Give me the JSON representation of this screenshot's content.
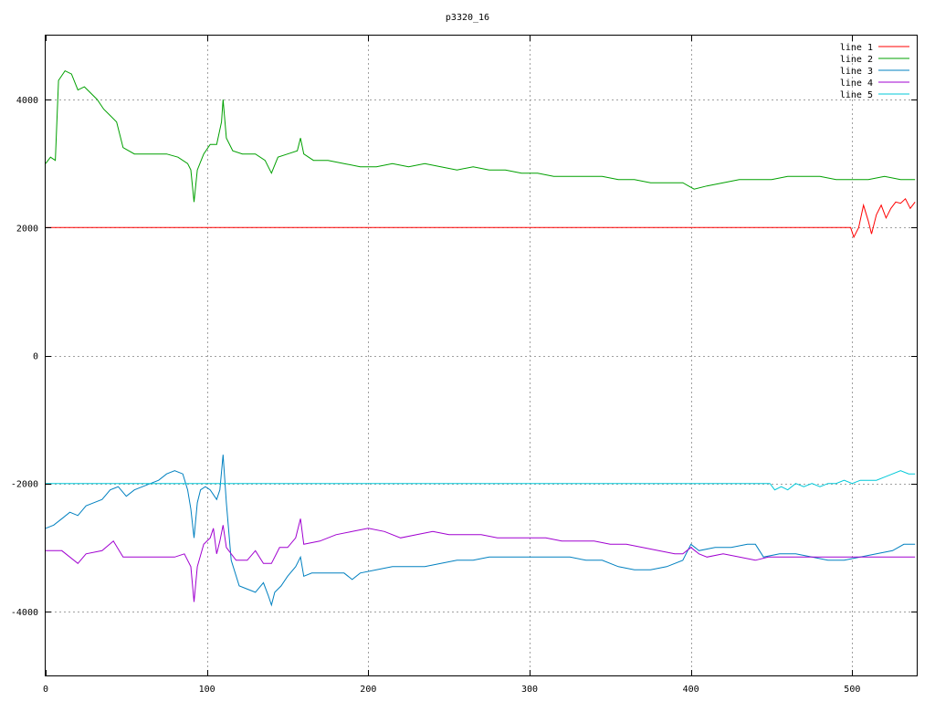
{
  "chart_data": {
    "type": "line",
    "title": "p3320_16",
    "xlim": [
      0,
      540
    ],
    "ylim": [
      -5000,
      5000
    ],
    "xticks": [
      0,
      100,
      200,
      300,
      400,
      500
    ],
    "yticks": [
      -4000,
      -2000,
      0,
      2000,
      4000
    ],
    "grid": true,
    "legend_position": "top-right",
    "series": [
      {
        "name": "line 1",
        "color": "#ff0000",
        "points": [
          [
            0,
            2000
          ],
          [
            100,
            2000
          ],
          [
            200,
            2000
          ],
          [
            300,
            2000
          ],
          [
            400,
            2000
          ],
          [
            499,
            2000
          ],
          [
            501,
            1850
          ],
          [
            504,
            2000
          ],
          [
            507,
            2350
          ],
          [
            510,
            2100
          ],
          [
            512,
            1900
          ],
          [
            515,
            2200
          ],
          [
            518,
            2350
          ],
          [
            521,
            2150
          ],
          [
            524,
            2300
          ],
          [
            527,
            2400
          ],
          [
            530,
            2380
          ],
          [
            533,
            2450
          ],
          [
            536,
            2300
          ],
          [
            539,
            2400
          ]
        ]
      },
      {
        "name": "line 2",
        "color": "#00a000",
        "points": [
          [
            0,
            3000
          ],
          [
            3,
            3100
          ],
          [
            6,
            3050
          ],
          [
            8,
            4300
          ],
          [
            12,
            4450
          ],
          [
            16,
            4400
          ],
          [
            20,
            4150
          ],
          [
            24,
            4200
          ],
          [
            28,
            4100
          ],
          [
            32,
            4000
          ],
          [
            36,
            3850
          ],
          [
            40,
            3750
          ],
          [
            44,
            3650
          ],
          [
            48,
            3250
          ],
          [
            55,
            3150
          ],
          [
            65,
            3150
          ],
          [
            75,
            3150
          ],
          [
            82,
            3100
          ],
          [
            88,
            3000
          ],
          [
            90,
            2900
          ],
          [
            92,
            2400
          ],
          [
            94,
            2900
          ],
          [
            98,
            3150
          ],
          [
            102,
            3300
          ],
          [
            106,
            3300
          ],
          [
            109,
            3650
          ],
          [
            110,
            4000
          ],
          [
            112,
            3400
          ],
          [
            116,
            3200
          ],
          [
            122,
            3150
          ],
          [
            130,
            3150
          ],
          [
            136,
            3050
          ],
          [
            140,
            2850
          ],
          [
            144,
            3100
          ],
          [
            150,
            3150
          ],
          [
            156,
            3200
          ],
          [
            158,
            3400
          ],
          [
            160,
            3150
          ],
          [
            166,
            3050
          ],
          [
            175,
            3050
          ],
          [
            185,
            3000
          ],
          [
            195,
            2950
          ],
          [
            205,
            2950
          ],
          [
            215,
            3000
          ],
          [
            225,
            2950
          ],
          [
            235,
            3000
          ],
          [
            245,
            2950
          ],
          [
            255,
            2900
          ],
          [
            265,
            2950
          ],
          [
            275,
            2900
          ],
          [
            285,
            2900
          ],
          [
            295,
            2850
          ],
          [
            305,
            2850
          ],
          [
            315,
            2800
          ],
          [
            325,
            2800
          ],
          [
            335,
            2800
          ],
          [
            345,
            2800
          ],
          [
            355,
            2750
          ],
          [
            365,
            2750
          ],
          [
            375,
            2700
          ],
          [
            385,
            2700
          ],
          [
            395,
            2700
          ],
          [
            402,
            2600
          ],
          [
            410,
            2650
          ],
          [
            420,
            2700
          ],
          [
            430,
            2750
          ],
          [
            440,
            2750
          ],
          [
            450,
            2750
          ],
          [
            460,
            2800
          ],
          [
            470,
            2800
          ],
          [
            480,
            2800
          ],
          [
            490,
            2750
          ],
          [
            500,
            2750
          ],
          [
            510,
            2750
          ],
          [
            520,
            2800
          ],
          [
            530,
            2750
          ],
          [
            539,
            2750
          ]
        ]
      },
      {
        "name": "line 3",
        "color": "#0080c0",
        "points": [
          [
            0,
            -2700
          ],
          [
            5,
            -2650
          ],
          [
            10,
            -2550
          ],
          [
            15,
            -2450
          ],
          [
            20,
            -2500
          ],
          [
            25,
            -2350
          ],
          [
            30,
            -2300
          ],
          [
            35,
            -2250
          ],
          [
            40,
            -2100
          ],
          [
            45,
            -2050
          ],
          [
            50,
            -2200
          ],
          [
            55,
            -2100
          ],
          [
            60,
            -2050
          ],
          [
            65,
            -2000
          ],
          [
            70,
            -1950
          ],
          [
            75,
            -1850
          ],
          [
            80,
            -1800
          ],
          [
            85,
            -1850
          ],
          [
            88,
            -2100
          ],
          [
            90,
            -2400
          ],
          [
            92,
            -2850
          ],
          [
            94,
            -2300
          ],
          [
            96,
            -2100
          ],
          [
            99,
            -2050
          ],
          [
            102,
            -2100
          ],
          [
            106,
            -2250
          ],
          [
            108,
            -2100
          ],
          [
            110,
            -1550
          ],
          [
            112,
            -2300
          ],
          [
            115,
            -3200
          ],
          [
            120,
            -3600
          ],
          [
            125,
            -3650
          ],
          [
            130,
            -3700
          ],
          [
            135,
            -3550
          ],
          [
            138,
            -3750
          ],
          [
            140,
            -3900
          ],
          [
            142,
            -3700
          ],
          [
            146,
            -3600
          ],
          [
            150,
            -3450
          ],
          [
            155,
            -3300
          ],
          [
            158,
            -3150
          ],
          [
            160,
            -3450
          ],
          [
            165,
            -3400
          ],
          [
            175,
            -3400
          ],
          [
            185,
            -3400
          ],
          [
            190,
            -3500
          ],
          [
            195,
            -3400
          ],
          [
            205,
            -3350
          ],
          [
            215,
            -3300
          ],
          [
            225,
            -3300
          ],
          [
            235,
            -3300
          ],
          [
            245,
            -3250
          ],
          [
            255,
            -3200
          ],
          [
            265,
            -3200
          ],
          [
            275,
            -3150
          ],
          [
            285,
            -3150
          ],
          [
            295,
            -3150
          ],
          [
            305,
            -3150
          ],
          [
            315,
            -3150
          ],
          [
            325,
            -3150
          ],
          [
            335,
            -3200
          ],
          [
            345,
            -3200
          ],
          [
            355,
            -3300
          ],
          [
            365,
            -3350
          ],
          [
            375,
            -3350
          ],
          [
            385,
            -3300
          ],
          [
            395,
            -3200
          ],
          [
            400,
            -2950
          ],
          [
            405,
            -3050
          ],
          [
            415,
            -3000
          ],
          [
            425,
            -3000
          ],
          [
            435,
            -2950
          ],
          [
            440,
            -2950
          ],
          [
            445,
            -3150
          ],
          [
            455,
            -3100
          ],
          [
            465,
            -3100
          ],
          [
            475,
            -3150
          ],
          [
            485,
            -3200
          ],
          [
            495,
            -3200
          ],
          [
            505,
            -3150
          ],
          [
            515,
            -3100
          ],
          [
            525,
            -3050
          ],
          [
            532,
            -2950
          ],
          [
            539,
            -2950
          ]
        ]
      },
      {
        "name": "line 4",
        "color": "#a000d0",
        "points": [
          [
            0,
            -3050
          ],
          [
            10,
            -3050
          ],
          [
            20,
            -3250
          ],
          [
            25,
            -3100
          ],
          [
            35,
            -3050
          ],
          [
            42,
            -2900
          ],
          [
            48,
            -3150
          ],
          [
            60,
            -3150
          ],
          [
            70,
            -3150
          ],
          [
            80,
            -3150
          ],
          [
            86,
            -3100
          ],
          [
            90,
            -3300
          ],
          [
            92,
            -3850
          ],
          [
            94,
            -3300
          ],
          [
            98,
            -2950
          ],
          [
            102,
            -2850
          ],
          [
            104,
            -2700
          ],
          [
            106,
            -3100
          ],
          [
            108,
            -2900
          ],
          [
            110,
            -2650
          ],
          [
            112,
            -3000
          ],
          [
            118,
            -3200
          ],
          [
            125,
            -3200
          ],
          [
            130,
            -3050
          ],
          [
            135,
            -3250
          ],
          [
            140,
            -3250
          ],
          [
            145,
            -3000
          ],
          [
            150,
            -3000
          ],
          [
            155,
            -2850
          ],
          [
            158,
            -2550
          ],
          [
            160,
            -2950
          ],
          [
            170,
            -2900
          ],
          [
            180,
            -2800
          ],
          [
            190,
            -2750
          ],
          [
            200,
            -2700
          ],
          [
            210,
            -2750
          ],
          [
            220,
            -2850
          ],
          [
            230,
            -2800
          ],
          [
            240,
            -2750
          ],
          [
            250,
            -2800
          ],
          [
            260,
            -2800
          ],
          [
            270,
            -2800
          ],
          [
            280,
            -2850
          ],
          [
            290,
            -2850
          ],
          [
            300,
            -2850
          ],
          [
            310,
            -2850
          ],
          [
            320,
            -2900
          ],
          [
            330,
            -2900
          ],
          [
            340,
            -2900
          ],
          [
            350,
            -2950
          ],
          [
            360,
            -2950
          ],
          [
            370,
            -3000
          ],
          [
            380,
            -3050
          ],
          [
            390,
            -3100
          ],
          [
            395,
            -3100
          ],
          [
            400,
            -3000
          ],
          [
            405,
            -3100
          ],
          [
            410,
            -3150
          ],
          [
            420,
            -3100
          ],
          [
            430,
            -3150
          ],
          [
            440,
            -3200
          ],
          [
            448,
            -3150
          ],
          [
            460,
            -3150
          ],
          [
            480,
            -3150
          ],
          [
            500,
            -3150
          ],
          [
            520,
            -3150
          ],
          [
            539,
            -3150
          ]
        ]
      },
      {
        "name": "line 5",
        "color": "#00c8d8",
        "points": [
          [
            0,
            -2000
          ],
          [
            100,
            -2000
          ],
          [
            200,
            -2000
          ],
          [
            300,
            -2000
          ],
          [
            400,
            -2000
          ],
          [
            449,
            -2000
          ],
          [
            452,
            -2100
          ],
          [
            456,
            -2050
          ],
          [
            460,
            -2100
          ],
          [
            465,
            -2000
          ],
          [
            470,
            -2050
          ],
          [
            475,
            -2000
          ],
          [
            480,
            -2050
          ],
          [
            485,
            -2000
          ],
          [
            490,
            -2000
          ],
          [
            495,
            -1950
          ],
          [
            500,
            -2000
          ],
          [
            505,
            -1950
          ],
          [
            510,
            -1950
          ],
          [
            515,
            -1950
          ],
          [
            520,
            -1900
          ],
          [
            525,
            -1850
          ],
          [
            530,
            -1800
          ],
          [
            535,
            -1850
          ],
          [
            539,
            -1850
          ]
        ]
      }
    ]
  }
}
